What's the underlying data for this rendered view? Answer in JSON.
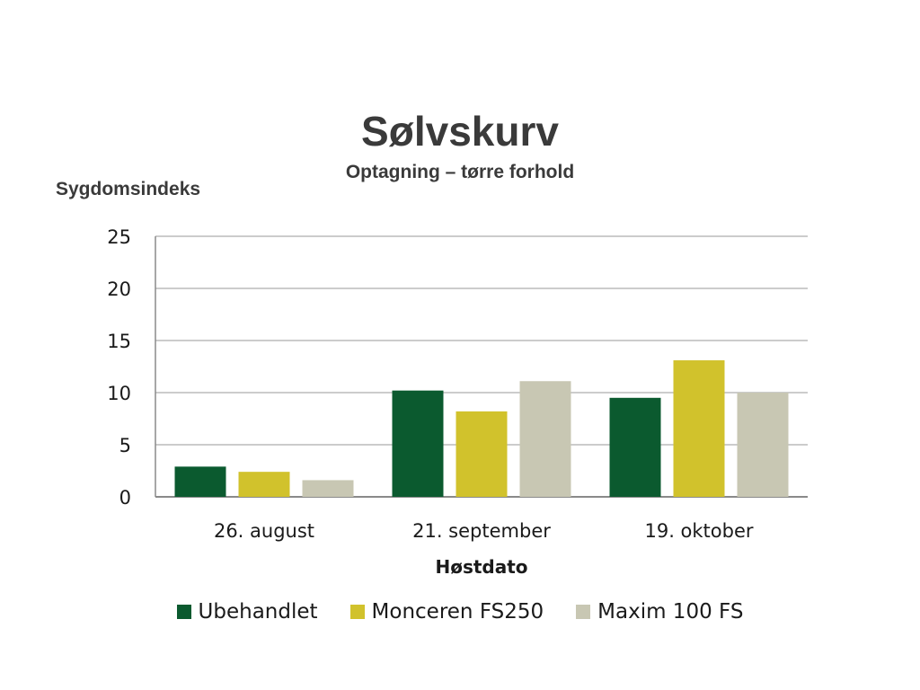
{
  "chart_data": {
    "type": "bar",
    "title": "Sølvskurv",
    "subtitle": "Optagning – tørre forhold",
    "ylabel": "Sygdomsindeks",
    "xlabel": "Høstdato",
    "categories": [
      "26. august",
      "21. september",
      "19. oktober"
    ],
    "series": [
      {
        "name": "Ubehandlet",
        "color": "#0b5a2f",
        "values": [
          2.9,
          10.2,
          9.5
        ]
      },
      {
        "name": "Monceren FS250",
        "color": "#d1c22c",
        "values": [
          2.4,
          8.2,
          13.1
        ]
      },
      {
        "name": "Maxim 100 FS",
        "color": "#c8c7b3",
        "values": [
          1.6,
          11.1,
          10.0
        ]
      }
    ],
    "ylim": [
      0,
      25
    ],
    "yticks": [
      0,
      5,
      10,
      15,
      20,
      25
    ],
    "grid": true,
    "legend_position": "bottom"
  }
}
